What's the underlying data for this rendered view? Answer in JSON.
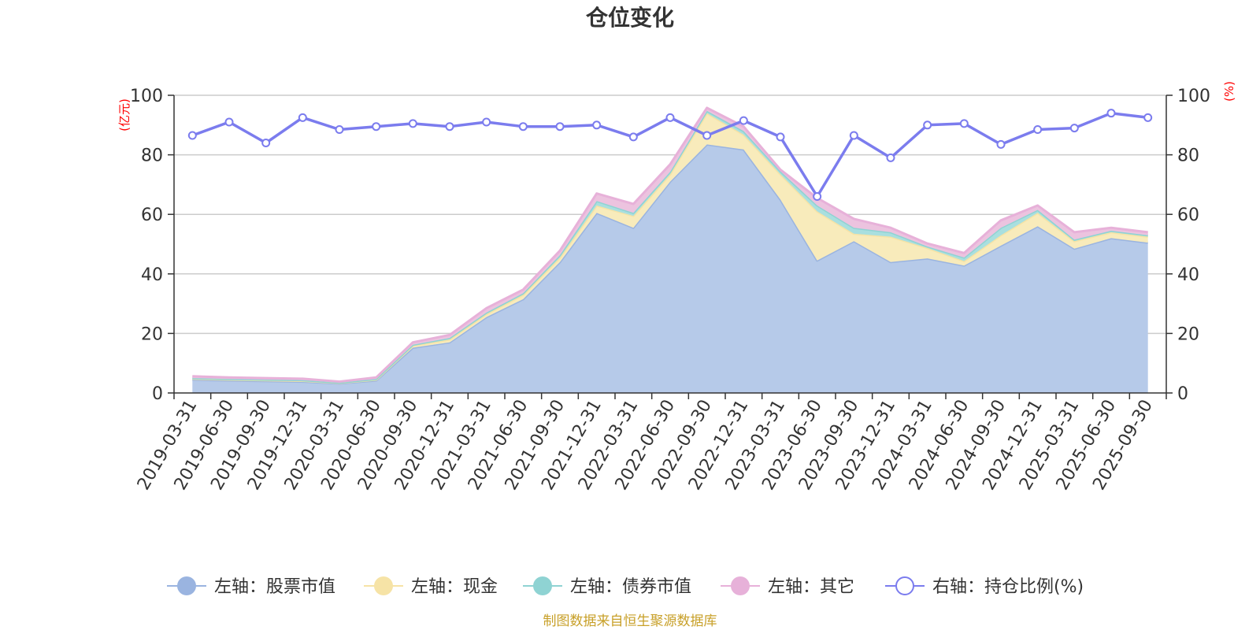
{
  "chart_data": {
    "type": "area",
    "title": "仓位变化",
    "left_axis_unit": "(亿元)",
    "right_axis_unit": "(%)",
    "ylim_left": [
      0,
      100
    ],
    "ylim_right": [
      0,
      100
    ],
    "yticks_left": [
      "0",
      "20",
      "40",
      "60",
      "80",
      "100"
    ],
    "yticks_right": [
      "0",
      "20",
      "40",
      "60",
      "80",
      "100"
    ],
    "categories": [
      "2019-03-31",
      "2019-06-30",
      "2019-09-30",
      "2019-12-31",
      "2020-03-31",
      "2020-06-30",
      "2020-09-30",
      "2020-12-31",
      "2021-03-31",
      "2021-06-30",
      "2021-09-30",
      "2021-12-31",
      "2022-03-31",
      "2022-06-30",
      "2022-09-30",
      "2022-12-31",
      "2023-03-31",
      "2023-06-30",
      "2023-09-30",
      "2023-12-31",
      "2024-03-31",
      "2024-06-30",
      "2024-09-30",
      "2024-12-31",
      "2025-03-31",
      "2025-06-30",
      "2025-09-30"
    ],
    "stacked_series": [
      {
        "name": "左轴：股票市值",
        "color": "#9ab4e0",
        "fill": "#b6cae9",
        "values": [
          4.5,
          4.2,
          4.0,
          3.8,
          3.2,
          4.2,
          15.2,
          17.0,
          25.5,
          31.5,
          44.0,
          60.5,
          55.5,
          71.0,
          83.5,
          81.8,
          65.0,
          44.5,
          51.0,
          44.0,
          45.2,
          42.8,
          49.5,
          56.0,
          48.5,
          52.0,
          50.5
        ]
      },
      {
        "name": "左轴：现金",
        "color": "#f6e3a6",
        "fill": "#f8ebbb",
        "values": [
          0.3,
          0.3,
          0.3,
          0.3,
          0.2,
          0.3,
          0.7,
          1.0,
          1.0,
          1.5,
          1.5,
          2.5,
          4.0,
          2.5,
          10.5,
          5.0,
          8.5,
          16.5,
          2.5,
          8.5,
          3.5,
          1.5,
          3.5,
          4.5,
          2.5,
          2.0,
          2.0
        ]
      },
      {
        "name": "左轴：债券市值",
        "color": "#8fd3d3",
        "fill": "#a9dfdf",
        "values": [
          0.2,
          0.2,
          0.2,
          0.2,
          0.1,
          0.2,
          0.3,
          0.5,
          0.5,
          0.5,
          0.8,
          1.5,
          1.0,
          0.8,
          0.8,
          1.2,
          1.0,
          2.0,
          2.0,
          1.5,
          0.5,
          1.2,
          2.5,
          1.0,
          0.5,
          0.5,
          0.5
        ]
      },
      {
        "name": "左轴：其它",
        "color": "#e7b1d9",
        "fill": "#ecc3df",
        "values": [
          0.6,
          0.5,
          0.5,
          0.5,
          0.3,
          0.5,
          0.8,
          1.0,
          1.5,
          1.2,
          1.5,
          2.5,
          3.0,
          2.5,
          1.0,
          1.5,
          0.5,
          2.5,
          3.0,
          1.5,
          1.0,
          1.5,
          2.5,
          1.5,
          2.5,
          1.0,
          1.0
        ]
      }
    ],
    "line_series": {
      "name": "右轴：持仓比例(%)",
      "color": "#7b7cee",
      "axis": "right",
      "values": [
        86.5,
        91.0,
        84.0,
        92.5,
        88.5,
        89.5,
        90.5,
        89.5,
        91.0,
        89.5,
        89.5,
        90.0,
        86.0,
        92.5,
        86.5,
        91.5,
        86.0,
        66.0,
        86.5,
        79.0,
        90.0,
        90.5,
        83.5,
        88.5,
        89.0,
        94.0,
        92.5
      ]
    },
    "legend": [
      {
        "label": "左轴：股票市值",
        "icon": "filled-circle-icon",
        "color": "#9ab4e0"
      },
      {
        "label": "左轴：现金",
        "icon": "filled-circle-icon",
        "color": "#f6e3a6"
      },
      {
        "label": "左轴：债券市值",
        "icon": "filled-circle-icon",
        "color": "#8fd3d3"
      },
      {
        "label": "左轴：其它",
        "icon": "filled-circle-icon",
        "color": "#e7b1d9"
      },
      {
        "label": "右轴：持仓比例(%)",
        "icon": "hollow-circle-icon",
        "color": "#7b7cee"
      }
    ],
    "source": "制图数据来自恒生聚源数据库"
  }
}
